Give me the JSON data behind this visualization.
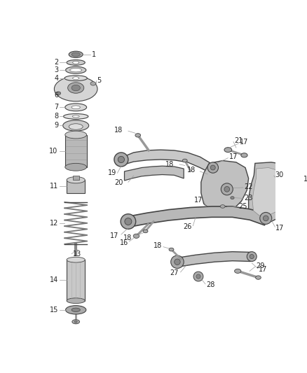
{
  "bg_color": "#ffffff",
  "fig_width": 4.38,
  "fig_height": 5.33,
  "dpi": 100,
  "label_fontsize": 7.0,
  "label_color": "#222222",
  "line_color": "#999999",
  "part_color": "#444444",
  "part_fill": "#cccccc",
  "part_fill2": "#aaaaaa",
  "part_fill3": "#888888"
}
